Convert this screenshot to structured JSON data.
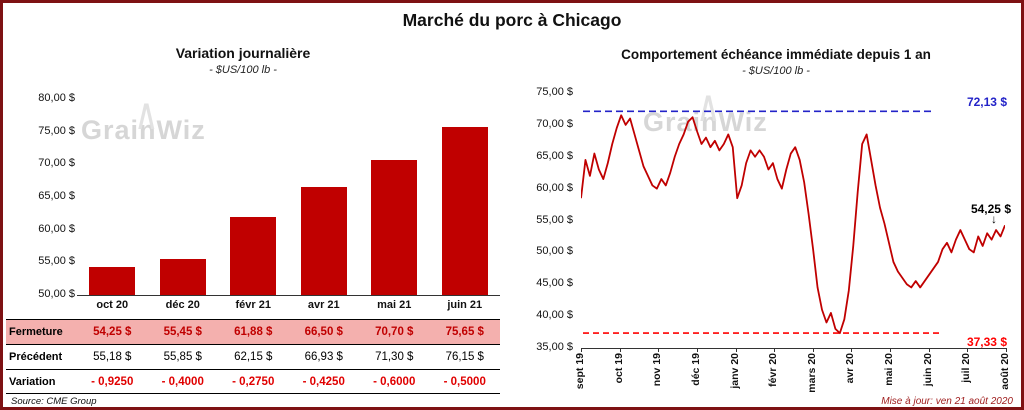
{
  "page": {
    "title": "Marché du porc à Chicago",
    "source": "Source: CME Group",
    "updated": "Mise à jour: ven 21 août 2020",
    "watermark": "GrainWiz"
  },
  "icons": {
    "peak": "∧",
    "down_arrow": "↓"
  },
  "colors": {
    "accent_red": "#C00000",
    "dashed_max": "#2323C8",
    "dashed_min": "#FF0000",
    "variation_red": "#E00000",
    "frame_border": "#7E1113",
    "fermeture_bg": "#F4B0AE",
    "updated_text": "#A02020"
  },
  "chart_data": [
    {
      "type": "bar",
      "title": "Variation  journalière",
      "subtitle": "- $US/100 lb -",
      "categories": [
        "oct 20",
        "déc 20",
        "févr 21",
        "avr 21",
        "mai 21",
        "juin 21"
      ],
      "values": [
        54.25,
        55.45,
        61.88,
        66.5,
        70.7,
        75.65
      ],
      "ylim": [
        50,
        80
      ],
      "ytick_labels": [
        "50,00 $",
        "55,00 $",
        "60,00 $",
        "65,00 $",
        "70,00 $",
        "75,00 $",
        "80,00 $"
      ],
      "grid": false,
      "legend": "none"
    },
    {
      "type": "line",
      "title": "Comportement  échéance  immédiate  depuis 1 an",
      "subtitle": "- $US/100 lb -",
      "x_labels": [
        "sept 19",
        "oct 19",
        "nov 19",
        "déc 19",
        "janv 20",
        "févr 20",
        "mars 20",
        "avr 20",
        "mai 20",
        "juin 20",
        "juil 20",
        "août 20"
      ],
      "ylim": [
        35,
        75
      ],
      "ytick_labels": [
        "35,00 $",
        "40,00 $",
        "45,00 $",
        "50,00 $",
        "55,00 $",
        "60,00 $",
        "65,00 $",
        "70,00 $",
        "75,00 $"
      ],
      "max_line": {
        "value": 72.13,
        "label": "72,13 $"
      },
      "min_line": {
        "value": 37.33,
        "label": "37,33 $"
      },
      "last_value": 54.25,
      "last_label": "54,25 $",
      "grid": false,
      "legend": "none",
      "values": [
        58.5,
        64.5,
        62.0,
        65.5,
        63.0,
        61.5,
        64.0,
        67.0,
        69.5,
        71.5,
        70.0,
        71.0,
        68.5,
        66.0,
        63.5,
        62.0,
        60.5,
        60.0,
        61.5,
        60.5,
        62.5,
        65.0,
        67.0,
        68.5,
        70.5,
        71.2,
        69.0,
        67.0,
        68.0,
        66.5,
        67.5,
        66.0,
        67.0,
        68.5,
        66.5,
        58.5,
        60.5,
        64.0,
        66.0,
        65.0,
        66.0,
        65.0,
        63.0,
        64.0,
        61.5,
        60.0,
        63.0,
        65.5,
        66.5,
        64.5,
        61.0,
        56.0,
        50.5,
        44.5,
        41.0,
        39.0,
        40.5,
        38.0,
        37.33,
        39.5,
        44.0,
        51.0,
        59.5,
        67.0,
        68.5,
        64.5,
        60.5,
        57.0,
        54.5,
        51.5,
        48.5,
        47.0,
        46.0,
        45.0,
        44.5,
        45.5,
        44.5,
        45.5,
        46.5,
        47.5,
        48.5,
        50.5,
        51.5,
        50.0,
        52.0,
        53.5,
        52.0,
        50.5,
        50.0,
        52.5,
        51.0,
        53.0,
        52.0,
        53.5,
        52.5,
        54.25
      ]
    }
  ],
  "table": {
    "rows": [
      {
        "label": "Fermeture",
        "values": [
          "54,25  $",
          "55,45  $",
          "61,88  $",
          "66,50  $",
          "70,70  $",
          "75,65  $"
        ]
      },
      {
        "label": "Précédent",
        "values": [
          "55,18  $",
          "55,85  $",
          "62,15  $",
          "66,93  $",
          "71,30  $",
          "76,15  $"
        ]
      },
      {
        "label": "Variation",
        "values": [
          "- 0,9250",
          "- 0,4000",
          "- 0,2750",
          "- 0,4250",
          "- 0,6000",
          "- 0,5000"
        ]
      }
    ]
  }
}
